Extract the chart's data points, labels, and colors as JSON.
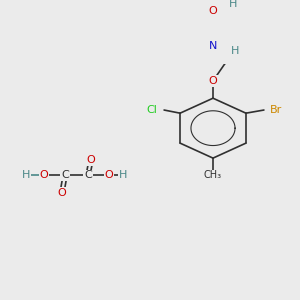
{
  "background_color": "#ebebeb",
  "figsize": [
    3.0,
    3.0
  ],
  "dpi": 100,
  "colors": {
    "C": "#303030",
    "O": "#cc0000",
    "N": "#1111cc",
    "Cl": "#22cc22",
    "Br": "#cc8800",
    "H": "#4a8888",
    "bond": "#303030"
  }
}
